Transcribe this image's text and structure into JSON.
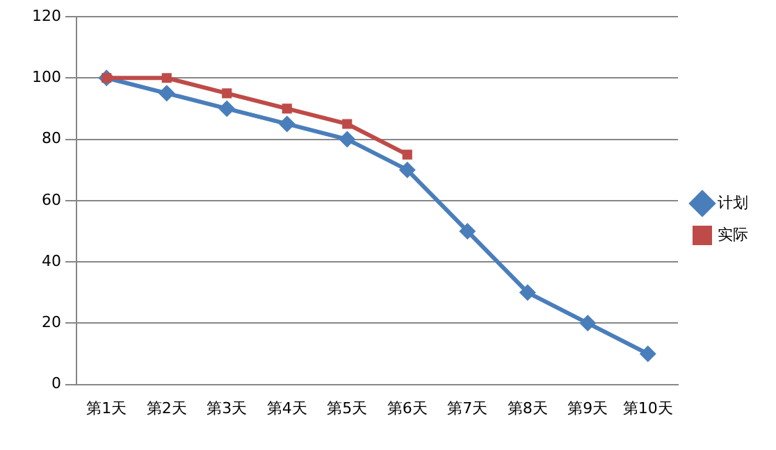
{
  "chart_data": {
    "type": "line",
    "categories": [
      "第1天",
      "第2天",
      "第3天",
      "第4天",
      "第5天",
      "第6天",
      "第7天",
      "第8天",
      "第9天",
      "第10天"
    ],
    "series": [
      {
        "name": "计划",
        "color": "#4a7ebb",
        "marker": "diamond",
        "values": [
          100,
          95,
          90,
          85,
          80,
          70,
          50,
          30,
          20,
          10
        ]
      },
      {
        "name": "实际",
        "color": "#be4b48",
        "marker": "square",
        "values": [
          100,
          100,
          95,
          90,
          85,
          75,
          null,
          null,
          null,
          null
        ]
      }
    ],
    "ylim": [
      0,
      120
    ],
    "yticks": [
      0,
      20,
      40,
      60,
      80,
      100,
      120
    ],
    "grid": "y",
    "legend": "right",
    "line_style": "solid"
  }
}
